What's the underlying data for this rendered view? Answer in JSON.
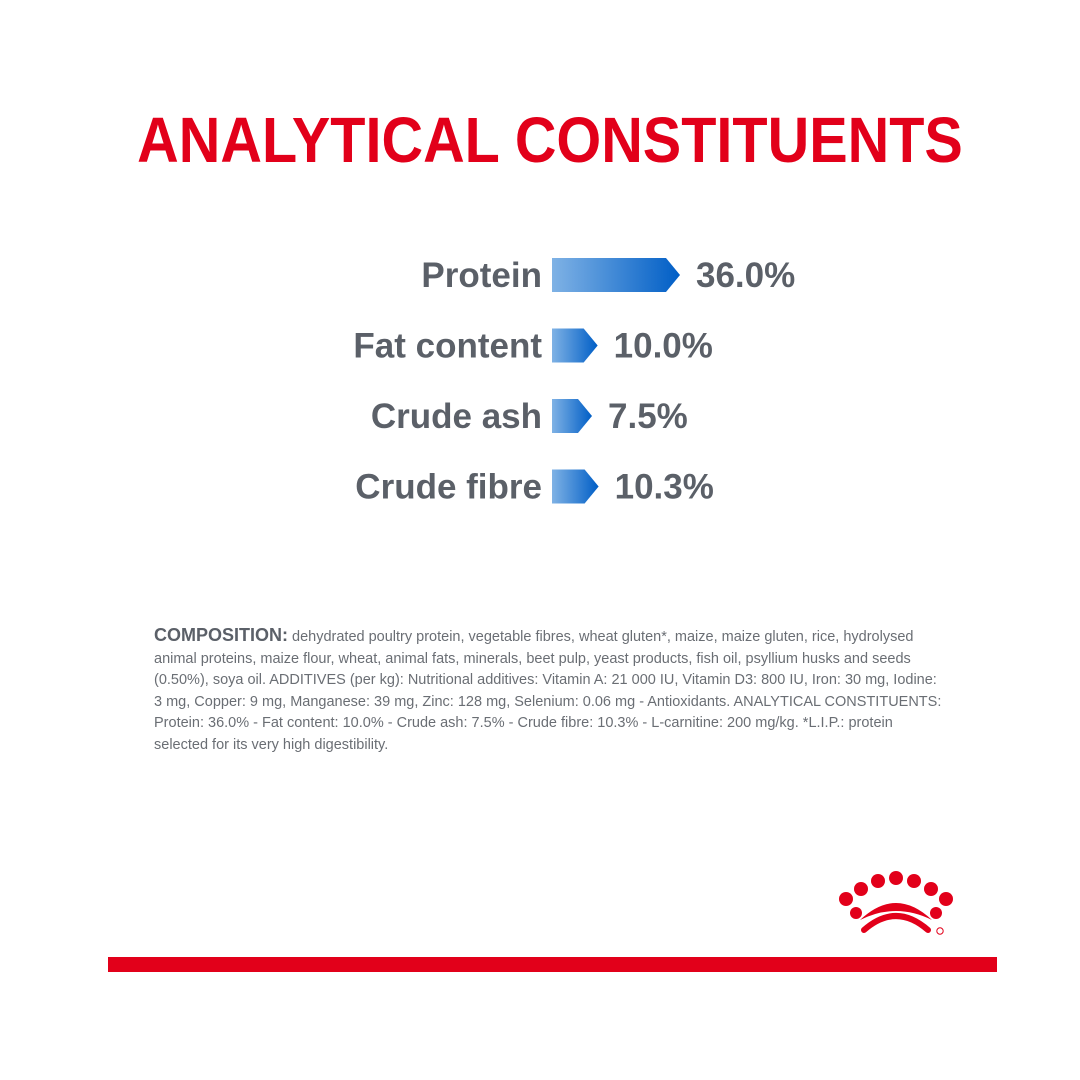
{
  "title": "ANALYTICAL CONSTITUENTS",
  "chart_data": {
    "type": "bar",
    "orientation": "horizontal",
    "title": "",
    "xlabel": "",
    "ylabel": "",
    "grid": false,
    "categories": [
      "Protein",
      "Fat content",
      "Crude ash",
      "Crude fibre"
    ],
    "values": [
      36.0,
      10.0,
      7.5,
      10.3
    ],
    "value_labels": [
      "36.0%",
      "10.0%",
      "7.5%",
      "10.3%"
    ],
    "unit": "%",
    "bar_gradient": [
      "#7fb2e5",
      "#005ec6"
    ]
  },
  "composition": {
    "lead": "COMPOSITION:",
    "text": " dehydrated poultry protein, vegetable fibres, wheat gluten*, maize, maize gluten, rice, hydrolysed animal proteins, maize flour, wheat, animal fats, minerals, beet pulp, yeast products, fish oil, psyllium husks and seeds (0.50%), soya oil. ADDITIVES (per kg): Nutritional additives: Vitamin A: 21 000 IU, Vitamin D3: 800 IU, Iron: 30 mg, Iodine: 3 mg, Copper: 9 mg, Manganese: 39 mg, Zinc: 128 mg, Selenium: 0.06 mg - Antioxidants. ANALYTICAL CONSTITUENTS: Protein: 36.0% - Fat content: 10.0% - Crude ash: 7.5% - Crude fibre: 10.3% - L-carnitine: 200 mg/kg. *L.I.P.: protein selected for its very high digestibility."
  },
  "colors": {
    "brand_red": "#e2001a",
    "label_gray": "#5b6068",
    "bar_blue_light": "#7fb2e5",
    "bar_blue_dark": "#005ec6"
  },
  "icons": [
    "crown-logo-icon"
  ]
}
